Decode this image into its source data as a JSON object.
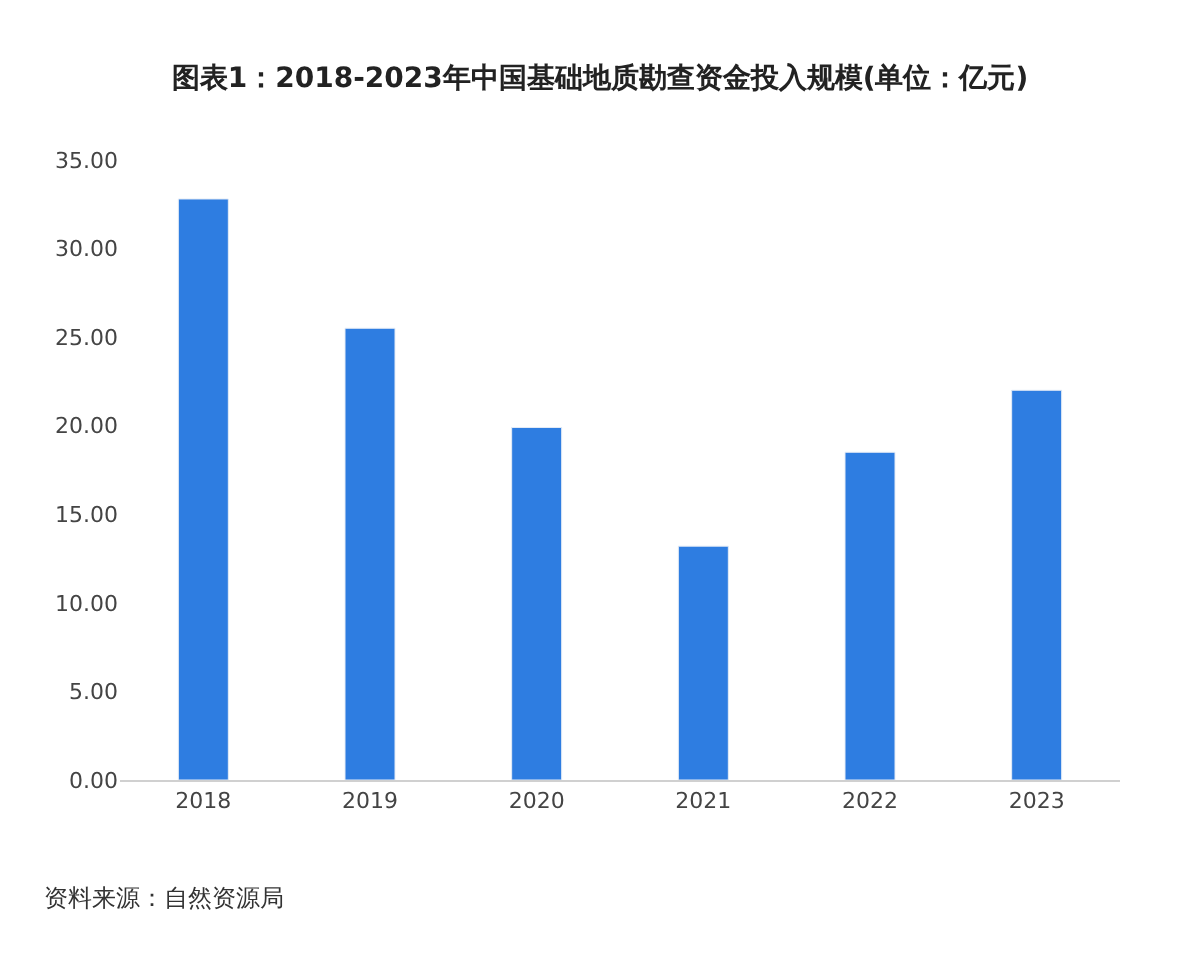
{
  "chart_data": {
    "type": "bar",
    "title": "图表1：2018-2023年中国基础地质勘查资金投入规模(单位：亿元)",
    "categories": [
      "2018",
      "2019",
      "2020",
      "2021",
      "2022",
      "2023"
    ],
    "values": [
      32.8,
      25.5,
      19.9,
      13.2,
      18.5,
      22.0
    ],
    "color": "#2e7de1",
    "ylim": [
      0,
      35
    ],
    "yticks": [
      {
        "value": 0,
        "label": "0.00"
      },
      {
        "value": 5,
        "label": "5.00"
      },
      {
        "value": 10,
        "label": "10.00"
      },
      {
        "value": 15,
        "label": "15.00"
      },
      {
        "value": 20,
        "label": "20.00"
      },
      {
        "value": 25,
        "label": "25.00"
      },
      {
        "value": 30,
        "label": "30.00"
      },
      {
        "value": 35,
        "label": "35.00"
      }
    ],
    "annotations": [
      "资料来源：自然资源局"
    ]
  }
}
